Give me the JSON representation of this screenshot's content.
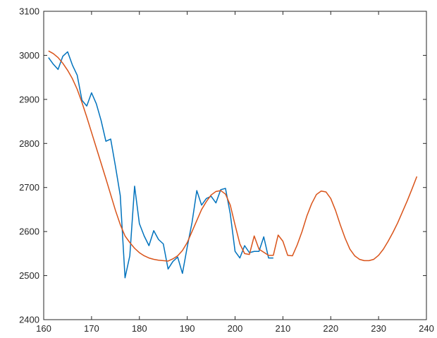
{
  "chart_data": {
    "type": "line",
    "title": "",
    "xlabel": "",
    "ylabel": "",
    "xlim": [
      160,
      240
    ],
    "ylim": [
      2400,
      3100
    ],
    "xticks": [
      160,
      170,
      180,
      190,
      200,
      210,
      220,
      230,
      240
    ],
    "yticks": [
      2400,
      2500,
      2600,
      2700,
      2800,
      2900,
      3000,
      3100
    ],
    "grid": false,
    "legend": "none",
    "series": [
      {
        "color": "#0072BD",
        "x": [
          161,
          162,
          163,
          164,
          165,
          166,
          167,
          168,
          169,
          170,
          171,
          172,
          173,
          174,
          175,
          176,
          177,
          178,
          179,
          180,
          181,
          182,
          183,
          184,
          185,
          186,
          187,
          188,
          189,
          190,
          191,
          192,
          193,
          194,
          195,
          196,
          197,
          198,
          199,
          200,
          201,
          202,
          203,
          204,
          205,
          206,
          207,
          208
        ],
        "y": [
          2995,
          2980,
          2968,
          2998,
          3008,
          2978,
          2955,
          2898,
          2885,
          2915,
          2890,
          2852,
          2805,
          2810,
          2748,
          2682,
          2495,
          2545,
          2703,
          2618,
          2590,
          2568,
          2602,
          2582,
          2572,
          2515,
          2532,
          2542,
          2505,
          2565,
          2620,
          2693,
          2660,
          2675,
          2680,
          2665,
          2695,
          2698,
          2640,
          2555,
          2540,
          2568,
          2552,
          2555,
          2555,
          2588,
          2540,
          2540
        ]
      },
      {
        "color": "#D95319",
        "x": [
          161,
          162,
          163,
          164,
          165,
          166,
          167,
          168,
          169,
          170,
          171,
          172,
          173,
          174,
          175,
          176,
          177,
          178,
          179,
          180,
          181,
          182,
          183,
          184,
          185,
          186,
          187,
          188,
          189,
          190,
          191,
          192,
          193,
          194,
          195,
          196,
          197,
          198,
          199,
          200,
          201,
          202,
          203,
          204,
          205,
          206,
          207,
          208,
          209,
          210,
          211,
          212,
          213,
          214,
          215,
          216,
          217,
          218,
          219,
          220,
          221,
          222,
          223,
          224,
          225,
          226,
          227,
          228,
          229,
          230,
          231,
          232,
          233,
          234,
          235,
          236,
          237,
          238
        ],
        "y": [
          3010,
          3004,
          2995,
          2982,
          2966,
          2947,
          2923,
          2893,
          2860,
          2825,
          2790,
          2755,
          2720,
          2684,
          2648,
          2616,
          2590,
          2575,
          2562,
          2552,
          2545,
          2540,
          2537,
          2535,
          2534,
          2533,
          2538,
          2545,
          2557,
          2575,
          2600,
          2625,
          2650,
          2668,
          2683,
          2691,
          2693,
          2685,
          2660,
          2615,
          2572,
          2550,
          2548,
          2590,
          2560,
          2553,
          2546,
          2546,
          2592,
          2578,
          2546,
          2545,
          2570,
          2600,
          2635,
          2663,
          2684,
          2692,
          2690,
          2675,
          2648,
          2615,
          2585,
          2560,
          2545,
          2537,
          2534,
          2534,
          2537,
          2546,
          2560,
          2578,
          2598,
          2620,
          2645,
          2670,
          2697,
          2725
        ]
      }
    ]
  }
}
